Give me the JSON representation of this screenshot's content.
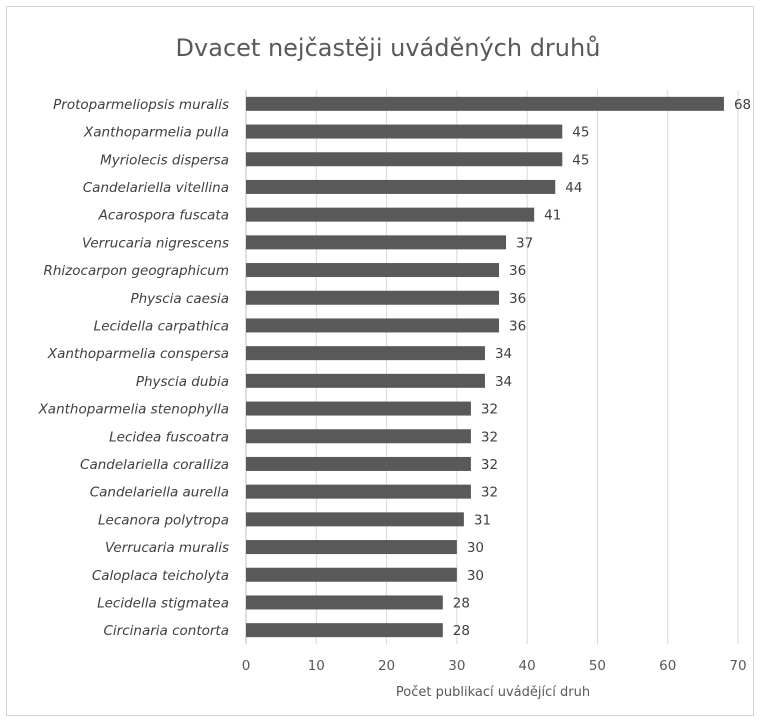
{
  "chart_data": {
    "type": "bar",
    "orientation": "horizontal",
    "title": "Dvacet nejčastěji uváděných druhů",
    "xlabel": "Počet publikací uvádějící druh",
    "ylabel": "",
    "xlim": [
      0,
      70
    ],
    "xticks": [
      0,
      10,
      20,
      30,
      40,
      50,
      60,
      70
    ],
    "grid": true,
    "legend": "none",
    "bar_color": "#595959",
    "categories": [
      "Protoparmeliopsis muralis",
      "Xanthoparmelia pulla",
      "Myriolecis dispersa",
      "Candelariella vitellina",
      "Acarospora fuscata",
      "Verrucaria nigrescens",
      "Rhizocarpon geographicum",
      "Physcia caesia",
      "Lecidella carpathica",
      "Xanthoparmelia conspersa",
      "Physcia dubia",
      "Xanthoparmelia stenophylla",
      "Lecidea fuscoatra",
      "Candelariella coralliza",
      "Candelariella aurella",
      "Lecanora polytropa",
      "Verrucaria muralis",
      "Caloplaca teicholyta",
      "Lecidella stigmatea",
      "Circinaria contorta"
    ],
    "values": [
      68,
      45,
      45,
      44,
      41,
      37,
      36,
      36,
      36,
      34,
      34,
      32,
      32,
      32,
      32,
      31,
      30,
      30,
      28,
      28
    ]
  }
}
